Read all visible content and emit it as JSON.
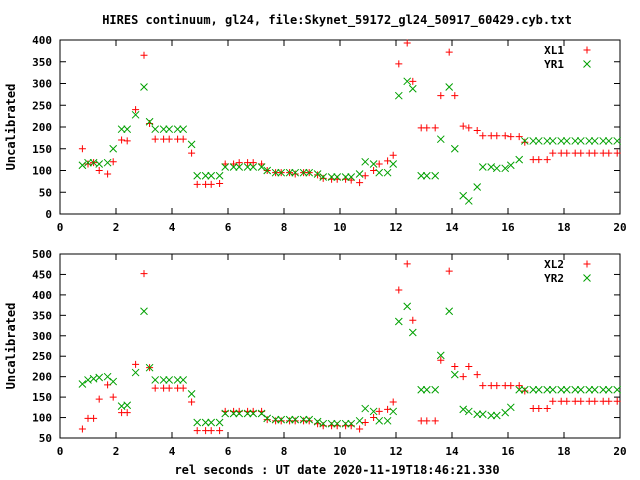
{
  "title": "HIRES continuum, gl24, file:Skynet_59172_gl24_50917_60429.cyb.txt",
  "xlabel": "rel seconds : UT date 2020-11-19T18:46:21.330",
  "colors": {
    "series1": "#ff0000",
    "series2": "#00a000"
  },
  "chart_data": [
    {
      "type": "scatter",
      "ylabel": "Uncalibrated",
      "xlim": [
        0,
        20
      ],
      "ylim": [
        0,
        400
      ],
      "xticks": [
        0,
        2,
        4,
        6,
        8,
        10,
        12,
        14,
        16,
        18,
        20
      ],
      "yticks": [
        0,
        50,
        100,
        150,
        200,
        250,
        300,
        350,
        400
      ],
      "legend": "top-right",
      "series": [
        {
          "name": "XL1",
          "marker": "plus",
          "x": [
            0.8,
            1.0,
            1.2,
            1.4,
            1.7,
            1.9,
            2.2,
            2.4,
            2.7,
            3.0,
            3.2,
            3.4,
            3.7,
            3.9,
            4.2,
            4.4,
            4.7,
            4.9,
            5.2,
            5.4,
            5.7,
            5.9,
            6.2,
            6.4,
            6.7,
            6.9,
            7.2,
            7.4,
            7.7,
            7.9,
            8.2,
            8.4,
            8.7,
            8.9,
            9.2,
            9.4,
            9.7,
            9.9,
            10.2,
            10.4,
            10.7,
            10.9,
            11.2,
            11.4,
            11.7,
            11.9,
            12.1,
            12.4,
            12.6,
            12.9,
            13.1,
            13.4,
            13.6,
            13.9,
            14.1,
            14.4,
            14.6,
            14.9,
            15.1,
            15.4,
            15.6,
            15.9,
            16.1,
            16.4,
            16.6,
            16.9,
            17.1,
            17.4,
            17.6,
            17.9,
            18.1,
            18.4,
            18.6,
            18.9,
            19.1,
            19.4,
            19.6,
            19.9
          ],
          "y": [
            150,
            115,
            118,
            100,
            92,
            120,
            170,
            168,
            240,
            365,
            208,
            172,
            172,
            172,
            172,
            172,
            140,
            68,
            68,
            68,
            70,
            115,
            115,
            118,
            118,
            118,
            115,
            100,
            95,
            95,
            95,
            92,
            95,
            95,
            90,
            82,
            80,
            80,
            80,
            78,
            72,
            88,
            100,
            115,
            122,
            135,
            345,
            393,
            305,
            198,
            198,
            198,
            272,
            372,
            272,
            202,
            198,
            192,
            180,
            180,
            180,
            180,
            178,
            178,
            165,
            125,
            125,
            125,
            140,
            140,
            140,
            140,
            140,
            140,
            140,
            140,
            140,
            140
          ]
        },
        {
          "name": "YR1",
          "marker": "cross",
          "x": [
            0.8,
            1.0,
            1.2,
            1.4,
            1.7,
            1.9,
            2.2,
            2.4,
            2.7,
            3.0,
            3.2,
            3.4,
            3.7,
            3.9,
            4.2,
            4.4,
            4.7,
            4.9,
            5.2,
            5.4,
            5.7,
            5.9,
            6.2,
            6.4,
            6.7,
            6.9,
            7.2,
            7.4,
            7.7,
            7.9,
            8.2,
            8.4,
            8.7,
            8.9,
            9.2,
            9.4,
            9.7,
            9.9,
            10.2,
            10.4,
            10.7,
            10.9,
            11.2,
            11.4,
            11.7,
            11.9,
            12.1,
            12.4,
            12.6,
            12.9,
            13.1,
            13.4,
            13.6,
            13.9,
            14.1,
            14.4,
            14.6,
            14.9,
            15.1,
            15.4,
            15.6,
            15.9,
            16.1,
            16.4,
            16.6,
            16.9,
            17.1,
            17.4,
            17.6,
            17.9,
            18.1,
            18.4,
            18.6,
            18.9,
            19.1,
            19.4,
            19.6,
            19.9
          ],
          "y": [
            112,
            118,
            118,
            115,
            118,
            150,
            195,
            195,
            228,
            292,
            212,
            195,
            195,
            195,
            195,
            195,
            160,
            88,
            88,
            88,
            88,
            108,
            108,
            108,
            108,
            108,
            108,
            100,
            95,
            95,
            95,
            95,
            95,
            95,
            92,
            85,
            85,
            85,
            85,
            85,
            92,
            120,
            115,
            95,
            95,
            115,
            272,
            305,
            288,
            88,
            88,
            88,
            172,
            292,
            150,
            42,
            30,
            62,
            108,
            108,
            105,
            105,
            112,
            125,
            168,
            168,
            168,
            168,
            168,
            168,
            168,
            168,
            168,
            168,
            168,
            168,
            168,
            168
          ]
        }
      ]
    },
    {
      "type": "scatter",
      "ylabel": "Uncalibrated",
      "xlabel": "rel seconds : UT date 2020-11-19T18:46:21.330",
      "xlim": [
        0,
        20
      ],
      "ylim": [
        50,
        500
      ],
      "xticks": [
        0,
        2,
        4,
        6,
        8,
        10,
        12,
        14,
        16,
        18,
        20
      ],
      "yticks": [
        50,
        100,
        150,
        200,
        250,
        300,
        350,
        400,
        450,
        500
      ],
      "legend": "top-right",
      "series": [
        {
          "name": "XL2",
          "marker": "plus",
          "x": [
            0.8,
            1.0,
            1.2,
            1.4,
            1.7,
            1.9,
            2.2,
            2.4,
            2.7,
            3.0,
            3.2,
            3.4,
            3.7,
            3.9,
            4.2,
            4.4,
            4.7,
            4.9,
            5.2,
            5.4,
            5.7,
            5.9,
            6.2,
            6.4,
            6.7,
            6.9,
            7.2,
            7.4,
            7.7,
            7.9,
            8.2,
            8.4,
            8.7,
            8.9,
            9.2,
            9.4,
            9.7,
            9.9,
            10.2,
            10.4,
            10.7,
            10.9,
            11.2,
            11.4,
            11.7,
            11.9,
            12.1,
            12.4,
            12.6,
            12.9,
            13.1,
            13.4,
            13.6,
            13.9,
            14.1,
            14.4,
            14.6,
            14.9,
            15.1,
            15.4,
            15.6,
            15.9,
            16.1,
            16.4,
            16.6,
            16.9,
            17.1,
            17.4,
            17.6,
            17.9,
            18.1,
            18.4,
            18.6,
            18.9,
            19.1,
            19.4,
            19.6,
            19.9
          ],
          "y": [
            72,
            98,
            98,
            145,
            180,
            150,
            112,
            112,
            230,
            452,
            222,
            172,
            172,
            172,
            172,
            172,
            138,
            68,
            68,
            68,
            68,
            115,
            115,
            115,
            115,
            115,
            115,
            95,
            92,
            92,
            92,
            92,
            92,
            92,
            85,
            80,
            80,
            80,
            80,
            80,
            72,
            88,
            100,
            115,
            120,
            138,
            412,
            476,
            338,
            92,
            92,
            92,
            240,
            458,
            225,
            200,
            225,
            205,
            178,
            178,
            178,
            178,
            178,
            178,
            165,
            122,
            122,
            122,
            140,
            140,
            140,
            140,
            140,
            140,
            140,
            140,
            140,
            140
          ]
        },
        {
          "name": "YR2",
          "marker": "cross",
          "x": [
            0.8,
            1.0,
            1.2,
            1.4,
            1.7,
            1.9,
            2.2,
            2.4,
            2.7,
            3.0,
            3.2,
            3.4,
            3.7,
            3.9,
            4.2,
            4.4,
            4.7,
            4.9,
            5.2,
            5.4,
            5.7,
            5.9,
            6.2,
            6.4,
            6.7,
            6.9,
            7.2,
            7.4,
            7.7,
            7.9,
            8.2,
            8.4,
            8.7,
            8.9,
            9.2,
            9.4,
            9.7,
            9.9,
            10.2,
            10.4,
            10.7,
            10.9,
            11.2,
            11.4,
            11.7,
            11.9,
            12.1,
            12.4,
            12.6,
            12.9,
            13.1,
            13.4,
            13.6,
            13.9,
            14.1,
            14.4,
            14.6,
            14.9,
            15.1,
            15.4,
            15.6,
            15.9,
            16.1,
            16.4,
            16.6,
            16.9,
            17.1,
            17.4,
            17.6,
            17.9,
            18.1,
            18.4,
            18.6,
            18.9,
            19.1,
            19.4,
            19.6,
            19.9
          ],
          "y": [
            182,
            192,
            195,
            198,
            200,
            188,
            128,
            130,
            210,
            360,
            222,
            192,
            192,
            192,
            192,
            192,
            158,
            88,
            88,
            88,
            88,
            110,
            110,
            110,
            110,
            110,
            110,
            98,
            95,
            95,
            95,
            95,
            95,
            95,
            90,
            85,
            85,
            85,
            85,
            85,
            92,
            122,
            115,
            92,
            92,
            115,
            335,
            372,
            308,
            168,
            168,
            168,
            252,
            360,
            205,
            120,
            115,
            108,
            108,
            105,
            105,
            112,
            125,
            168,
            168,
            168,
            168,
            168,
            168,
            168,
            168,
            168,
            168,
            168,
            168,
            168,
            168,
            168
          ]
        }
      ]
    }
  ]
}
